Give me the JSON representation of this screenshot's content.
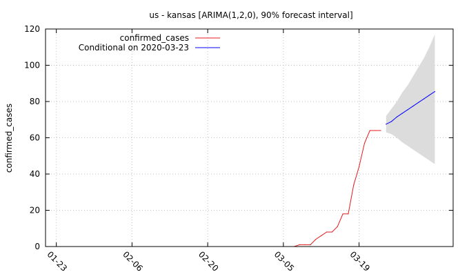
{
  "chart_data": {
    "type": "line",
    "title": "us - kansas [ARIMA(1,2,0), 90% forecast interval]",
    "xlabel": "",
    "ylabel": "confirmed_cases",
    "x_tick_labels": [
      "01-23",
      "02-06",
      "02-20",
      "03-05",
      "03-19"
    ],
    "y_tick_labels": [
      "0",
      "20",
      "40",
      "60",
      "80",
      "100",
      "120"
    ],
    "ylim": [
      0,
      120
    ],
    "grid": true,
    "legend_position": "top-left",
    "x_axis_type": "date",
    "x_start": "2020-01-23",
    "x_ticks": [
      "2020-01-23",
      "2020-02-06",
      "2020-02-20",
      "2020-03-05",
      "2020-03-19"
    ],
    "series": [
      {
        "name": "confirmed_cases",
        "color": "#e41a1c",
        "x": [
          "2020-03-07",
          "2020-03-08",
          "2020-03-09",
          "2020-03-10",
          "2020-03-11",
          "2020-03-12",
          "2020-03-13",
          "2020-03-14",
          "2020-03-15",
          "2020-03-16",
          "2020-03-17",
          "2020-03-18",
          "2020-03-19",
          "2020-03-20",
          "2020-03-21",
          "2020-03-22",
          "2020-03-23"
        ],
        "y": [
          0,
          1,
          1,
          1,
          4,
          6,
          8,
          8,
          11,
          18,
          18,
          34,
          44,
          57,
          64,
          64,
          64
        ]
      },
      {
        "name": "Conditional on 2020-03-23",
        "color": "#0000ff",
        "x": [
          "2020-03-24",
          "2020-03-25",
          "2020-03-26",
          "2020-03-27",
          "2020-03-28",
          "2020-03-29",
          "2020-03-30",
          "2020-03-31",
          "2020-04-01",
          "2020-04-02"
        ],
        "y": [
          67.5,
          69.0,
          71.5,
          73.5,
          75.5,
          77.5,
          79.5,
          81.5,
          83.5,
          85.5
        ]
      }
    ],
    "forecast_interval": {
      "x": [
        "2020-03-24",
        "2020-03-25",
        "2020-03-26",
        "2020-03-27",
        "2020-03-28",
        "2020-03-29",
        "2020-03-30",
        "2020-03-31",
        "2020-04-01",
        "2020-04-02"
      ],
      "lower": [
        63,
        62,
        60,
        57.5,
        55.5,
        53.5,
        51.5,
        49.5,
        47.5,
        45.5
      ],
      "upper": [
        72,
        76,
        80,
        85,
        89,
        94,
        99,
        104,
        110,
        117
      ]
    }
  }
}
